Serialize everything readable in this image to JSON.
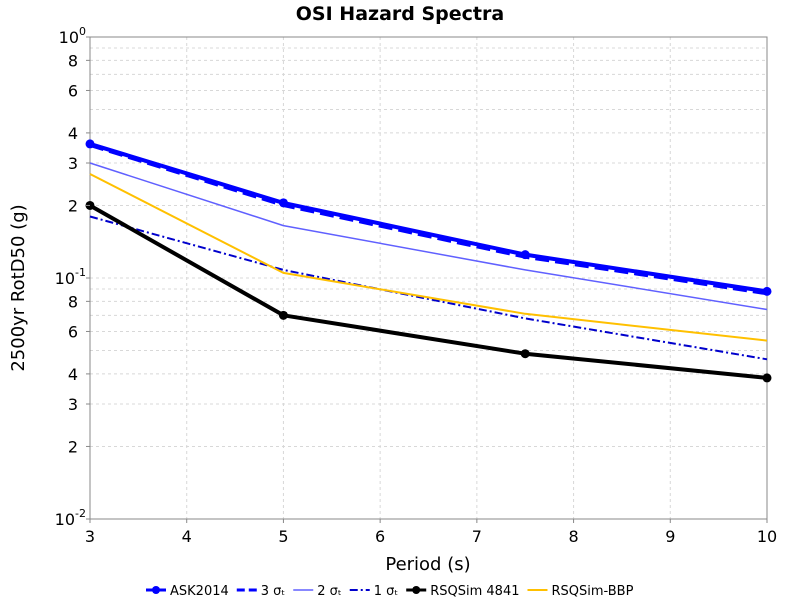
{
  "chart_data": {
    "type": "line",
    "title": "OSI Hazard Spectra",
    "xlabel": "Period (s)",
    "ylabel": "2500yr RotD50 (g)",
    "xlim": [
      3,
      10
    ],
    "ylim": [
      0.01,
      1
    ],
    "yscale": "log",
    "grid": true,
    "legend_position": "bottom",
    "x_ticks": [
      "3",
      "4",
      "5",
      "6",
      "7",
      "8",
      "9",
      "10"
    ],
    "y_ticks": [
      {
        "value": 1,
        "base": "10",
        "exp": "0"
      },
      {
        "value": 0.8,
        "label": "8"
      },
      {
        "value": 0.6,
        "label": "6"
      },
      {
        "value": 0.4,
        "label": "4"
      },
      {
        "value": 0.3,
        "label": "3"
      },
      {
        "value": 0.2,
        "label": "2"
      },
      {
        "value": 0.1,
        "base": "10",
        "exp": "-1"
      },
      {
        "value": 0.08,
        "label": "8"
      },
      {
        "value": 0.06,
        "label": "6"
      },
      {
        "value": 0.04,
        "label": "4"
      },
      {
        "value": 0.03,
        "label": "3"
      },
      {
        "value": 0.02,
        "label": "2"
      },
      {
        "value": 0.01,
        "base": "10",
        "exp": "-2"
      }
    ],
    "series": [
      {
        "name": "ASK2014",
        "color": "#0000ff",
        "style": "solid",
        "width": 4,
        "markers": true,
        "x": [
          3,
          5,
          7.5,
          10
        ],
        "y": [
          0.36,
          0.205,
          0.125,
          0.088
        ]
      },
      {
        "name": "3 σₜ",
        "color": "#0000ff",
        "style": "dashed",
        "width": 3,
        "markers": false,
        "x": [
          3,
          5,
          7.5,
          10
        ],
        "y": [
          0.355,
          0.2,
          0.122,
          0.086
        ]
      },
      {
        "name": "2 σₜ",
        "color": "#6060ff",
        "style": "solid",
        "width": 1.5,
        "markers": false,
        "x": [
          3,
          5,
          7.5,
          10
        ],
        "y": [
          0.3,
          0.165,
          0.108,
          0.074
        ]
      },
      {
        "name": "1 σₜ",
        "color": "#0000cc",
        "style": "dashdot",
        "width": 2,
        "markers": false,
        "x": [
          3,
          5,
          7.5,
          10
        ],
        "y": [
          0.18,
          0.108,
          0.068,
          0.046
        ]
      },
      {
        "name": "RSQSim 4841",
        "color": "#000000",
        "style": "solid",
        "width": 4,
        "markers": true,
        "x": [
          3,
          5,
          7.5,
          10
        ],
        "y": [
          0.2,
          0.07,
          0.0485,
          0.0385
        ]
      },
      {
        "name": "RSQSim-BBP",
        "color": "#ffc000",
        "style": "solid",
        "width": 2,
        "markers": false,
        "x": [
          3,
          5,
          7.5,
          10
        ],
        "y": [
          0.27,
          0.105,
          0.071,
          0.055
        ]
      }
    ]
  }
}
